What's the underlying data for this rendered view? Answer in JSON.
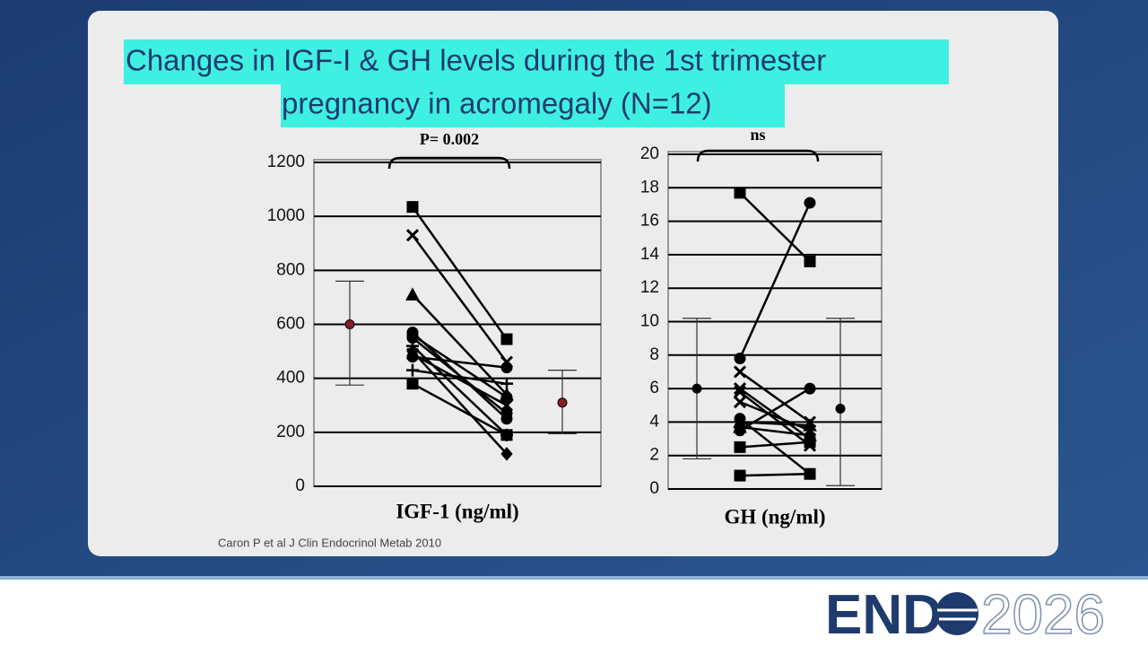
{
  "title_lines": [
    "Changes in IGF-I & GH levels during the 1st trimester",
    "pregnancy in acromegaly (N=12)"
  ],
  "citation": "Caron P et al J Clin Endocrinol Metab 2010",
  "logo": {
    "left": "END",
    "right": "2026"
  },
  "chart_data": [
    {
      "type": "paired",
      "annotation": "P= 0.002",
      "x_label": "IGF-1 (ng/ml)",
      "ylim": [
        0,
        1200
      ],
      "yticks": [
        0,
        200,
        400,
        600,
        800,
        1000,
        1200
      ],
      "grid": true,
      "line_color": "#000000",
      "summary_color": "#8b1a2b",
      "markers": [
        "square",
        "x",
        "triangle",
        "circle",
        "circle",
        "plus",
        "diamond",
        "circle",
        "plus",
        "square",
        "circle",
        "x"
      ],
      "before": [
        1035,
        930,
        710,
        570,
        550,
        520,
        500,
        480,
        430,
        380,
        560,
        490
      ],
      "after": [
        545,
        460,
        340,
        250,
        270,
        190,
        120,
        440,
        380,
        190,
        330,
        300
      ],
      "summary": {
        "mean": [
          600,
          310
        ],
        "upper": [
          760,
          430
        ],
        "lower": [
          375,
          195
        ]
      }
    },
    {
      "type": "paired",
      "annotation": "ns",
      "x_label": "GH (ng/ml)",
      "ylim": [
        0,
        20
      ],
      "yticks": [
        0,
        2,
        4,
        6,
        8,
        10,
        12,
        14,
        16,
        18,
        20
      ],
      "grid": true,
      "line_color": "#000000",
      "summary_color": "#000000",
      "markers": [
        "square",
        "circle",
        "x",
        "x",
        "x",
        "x",
        "triangle",
        "triangle",
        "circle",
        "square",
        "square",
        "circle"
      ],
      "before": [
        17.7,
        7.8,
        7.0,
        6.0,
        5.8,
        5.2,
        4.0,
        3.7,
        3.5,
        2.5,
        0.8,
        4.2
      ],
      "after": [
        13.6,
        17.1,
        4.0,
        3.0,
        2.6,
        3.5,
        3.8,
        3.2,
        6.0,
        2.8,
        0.9,
        0.9
      ],
      "summary": {
        "mean": [
          6,
          4.8
        ],
        "upper": [
          10.2,
          10.2
        ],
        "lower": [
          1.8,
          0.2
        ]
      }
    }
  ]
}
